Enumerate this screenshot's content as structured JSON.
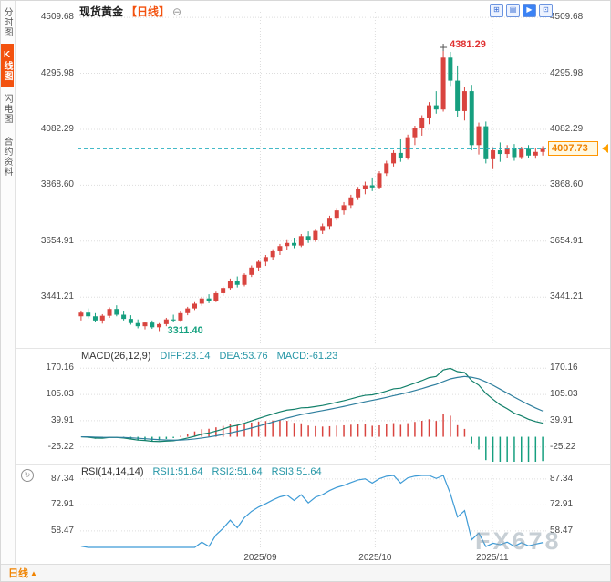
{
  "sidebar": {
    "items": [
      {
        "label": "分时图",
        "active": false
      },
      {
        "label": "K线图",
        "active": true
      },
      {
        "label": "闪电图",
        "active": false
      },
      {
        "label": "合约资料",
        "active": false
      }
    ]
  },
  "header": {
    "title": "现货黄金",
    "period": "【日线】",
    "collapse_icon": "⊖"
  },
  "toolbar": {
    "icons": [
      {
        "name": "grid-layout-icon",
        "glyph": "⊞"
      },
      {
        "name": "list-layout-icon",
        "glyph": "▤"
      },
      {
        "name": "chart-switch-icon",
        "glyph": "▶"
      },
      {
        "name": "panel-layout-icon",
        "glyph": "⊡"
      }
    ]
  },
  "icons": {
    "indicator_refresh": "↻"
  },
  "macd_header": {
    "name": "MACD(26,12,9)",
    "diff": "DIFF:23.14",
    "dea": "DEA:53.76",
    "macd": "MACD:-61.23"
  },
  "rsi_header": {
    "name": "RSI(14,14,14)",
    "rsi1": "RSI1:51.64",
    "rsi2": "RSI2:51.64",
    "rsi3": "RSI3:51.64"
  },
  "price_label": {
    "value": "4007.73"
  },
  "annotations": {
    "high": "4381.29",
    "low": "3311.40"
  },
  "x_axis_labels": [
    "2025/09",
    "2025/10",
    "2025/11"
  ],
  "bottom_bar": {
    "period": "日线",
    "arrow": "▲"
  },
  "watermark": "FX678",
  "colors": {
    "up": "#d9443f",
    "down": "#169f7f",
    "accent_orange": "#f08300",
    "line_rsi": "#3e9bd6",
    "diff_line": "#12806a",
    "dea_line": "#2f7f9e",
    "last_price_line": "#2ab0c0",
    "grid": "#dddddd"
  },
  "chart_data": {
    "type": "candlestick",
    "title": "现货黄金 日线 (Spot Gold, Daily)",
    "y_ticks": [
      4509.68,
      4295.98,
      4082.29,
      3868.6,
      3654.91,
      3441.21
    ],
    "y_domain": [
      3261,
      4531
    ],
    "x_tick_labels": [
      {
        "label": "2025/09",
        "pos": 0.39
      },
      {
        "label": "2025/10",
        "pos": 0.635
      },
      {
        "label": "2025/11",
        "pos": 0.885
      }
    ],
    "last_price": 4007.73,
    "high_annotation": {
      "index": 51,
      "value": 4381.29
    },
    "low_annotation": {
      "index": 11,
      "value": 3311.4
    },
    "candles": [
      [
        3368,
        3390,
        3352,
        3382
      ],
      [
        3382,
        3398,
        3360,
        3368
      ],
      [
        3368,
        3380,
        3345,
        3352
      ],
      [
        3352,
        3376,
        3340,
        3370
      ],
      [
        3370,
        3402,
        3362,
        3396
      ],
      [
        3396,
        3410,
        3368,
        3374
      ],
      [
        3374,
        3388,
        3352,
        3358
      ],
      [
        3358,
        3372,
        3336,
        3342
      ],
      [
        3342,
        3356,
        3322,
        3330
      ],
      [
        3330,
        3348,
        3318,
        3344
      ],
      [
        3344,
        3352,
        3320,
        3326
      ],
      [
        3326,
        3342,
        3311.4,
        3338
      ],
      [
        3338,
        3362,
        3330,
        3356
      ],
      [
        3356,
        3374,
        3348,
        3352
      ],
      [
        3352,
        3386,
        3350,
        3380
      ],
      [
        3380,
        3404,
        3372,
        3398
      ],
      [
        3398,
        3422,
        3392,
        3416
      ],
      [
        3416,
        3442,
        3408,
        3436
      ],
      [
        3436,
        3452,
        3418,
        3426
      ],
      [
        3426,
        3462,
        3422,
        3456
      ],
      [
        3456,
        3482,
        3446,
        3476
      ],
      [
        3476,
        3512,
        3470,
        3504
      ],
      [
        3504,
        3520,
        3478,
        3488
      ],
      [
        3488,
        3532,
        3482,
        3526
      ],
      [
        3526,
        3562,
        3518,
        3554
      ],
      [
        3554,
        3584,
        3542,
        3576
      ],
      [
        3576,
        3602,
        3560,
        3594
      ],
      [
        3594,
        3624,
        3582,
        3616
      ],
      [
        3616,
        3644,
        3602,
        3636
      ],
      [
        3636,
        3662,
        3620,
        3648
      ],
      [
        3648,
        3668,
        3628,
        3638
      ],
      [
        3638,
        3682,
        3632,
        3674
      ],
      [
        3674,
        3692,
        3648,
        3658
      ],
      [
        3658,
        3702,
        3652,
        3694
      ],
      [
        3694,
        3722,
        3682,
        3712
      ],
      [
        3712,
        3752,
        3702,
        3744
      ],
      [
        3744,
        3782,
        3734,
        3772
      ],
      [
        3772,
        3804,
        3756,
        3792
      ],
      [
        3792,
        3832,
        3782,
        3822
      ],
      [
        3822,
        3862,
        3812,
        3854
      ],
      [
        3854,
        3882,
        3834,
        3868
      ],
      [
        3868,
        3898,
        3846,
        3860
      ],
      [
        3860,
        3922,
        3856,
        3914
      ],
      [
        3914,
        3962,
        3904,
        3952
      ],
      [
        3952,
        4002,
        3940,
        3992
      ],
      [
        3992,
        4044,
        3958,
        3972
      ],
      [
        3972,
        4062,
        3966,
        4052
      ],
      [
        4052,
        4096,
        4022,
        4086
      ],
      [
        4086,
        4136,
        4058,
        4124
      ],
      [
        4124,
        4186,
        4102,
        4174
      ],
      [
        4174,
        4228,
        4142,
        4158
      ],
      [
        4158,
        4381.29,
        4150,
        4356
      ],
      [
        4356,
        4378,
        4248,
        4268
      ],
      [
        4268,
        4326,
        4128,
        4152
      ],
      [
        4152,
        4244,
        4116,
        4228
      ],
      [
        4228,
        4252,
        4002,
        4022
      ],
      [
        4022,
        4108,
        3986,
        4094
      ],
      [
        4094,
        4112,
        3952,
        3968
      ],
      [
        3968,
        4014,
        3930,
        4002
      ],
      [
        4002,
        4032,
        3958,
        3988
      ],
      [
        3988,
        4022,
        3972,
        4012
      ],
      [
        4012,
        4026,
        3962,
        3976
      ],
      [
        3976,
        4016,
        3968,
        4008
      ],
      [
        4008,
        4022,
        3972,
        3982
      ],
      [
        3982,
        4012,
        3970,
        3996
      ],
      [
        3996,
        4018,
        3982,
        4007.73
      ]
    ],
    "macd": {
      "params": [
        26,
        12,
        9
      ],
      "diff": 23.14,
      "dea": 53.76,
      "hist": -61.23,
      "ticks": [
        170.16,
        105.03,
        39.91,
        -25.22
      ],
      "domain": [
        -62,
        182
      ]
    },
    "rsi": {
      "params": [
        14,
        14,
        14
      ],
      "rsi1": 51.64,
      "rsi2": 51.64,
      "rsi3": 51.64,
      "ticks": [
        87.34,
        72.91,
        58.47
      ],
      "domain": [
        49.3,
        89.3
      ]
    }
  }
}
